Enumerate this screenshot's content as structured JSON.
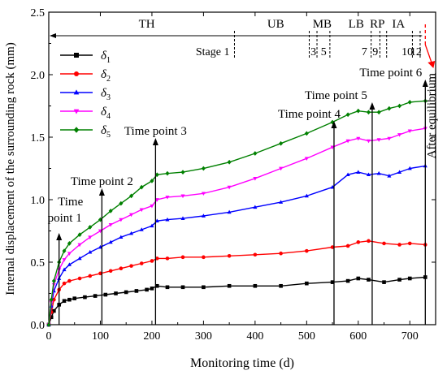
{
  "chart_data": {
    "type": "line",
    "title": "",
    "xlabel": "Monitoring time (d)",
    "ylabel": "Internal displacement of the surrounding rock (mm)",
    "xlim": [
      0,
      750
    ],
    "ylim": [
      0,
      2.5
    ],
    "x_ticks": [
      0,
      100,
      200,
      300,
      400,
      500,
      600,
      700
    ],
    "y_ticks": [
      0.0,
      0.5,
      1.0,
      1.5,
      2.0,
      2.5
    ],
    "x_tick_labels": [
      "0",
      "100",
      "200",
      "300",
      "400",
      "500",
      "600",
      "700"
    ],
    "y_tick_labels": [
      "0.0",
      "0.5",
      "1.0",
      "1.5",
      "2.0",
      "2.5"
    ],
    "grid": false,
    "legend_position": "top-left",
    "series": [
      {
        "name": "δ1",
        "color": "#000000",
        "marker": "square",
        "points": [
          [
            0,
            0
          ],
          [
            5,
            0.06
          ],
          [
            10,
            0.11
          ],
          [
            20,
            0.16
          ],
          [
            30,
            0.19
          ],
          [
            40,
            0.2
          ],
          [
            50,
            0.21
          ],
          [
            70,
            0.22
          ],
          [
            90,
            0.23
          ],
          [
            110,
            0.24
          ],
          [
            130,
            0.25
          ],
          [
            150,
            0.26
          ],
          [
            170,
            0.27
          ],
          [
            190,
            0.28
          ],
          [
            200,
            0.29
          ],
          [
            210,
            0.31
          ],
          [
            230,
            0.3
          ],
          [
            260,
            0.3
          ],
          [
            300,
            0.3
          ],
          [
            350,
            0.31
          ],
          [
            400,
            0.31
          ],
          [
            450,
            0.31
          ],
          [
            500,
            0.33
          ],
          [
            550,
            0.34
          ],
          [
            580,
            0.35
          ],
          [
            600,
            0.37
          ],
          [
            620,
            0.36
          ],
          [
            650,
            0.34
          ],
          [
            680,
            0.36
          ],
          [
            700,
            0.37
          ],
          [
            730,
            0.38
          ]
        ]
      },
      {
        "name": "δ2",
        "color": "#ff0000",
        "marker": "circle",
        "points": [
          [
            0,
            0
          ],
          [
            5,
            0.1
          ],
          [
            10,
            0.2
          ],
          [
            20,
            0.28
          ],
          [
            30,
            0.33
          ],
          [
            40,
            0.35
          ],
          [
            60,
            0.37
          ],
          [
            80,
            0.39
          ],
          [
            100,
            0.41
          ],
          [
            120,
            0.43
          ],
          [
            140,
            0.45
          ],
          [
            160,
            0.47
          ],
          [
            180,
            0.49
          ],
          [
            200,
            0.51
          ],
          [
            210,
            0.53
          ],
          [
            230,
            0.53
          ],
          [
            260,
            0.54
          ],
          [
            300,
            0.54
          ],
          [
            350,
            0.55
          ],
          [
            400,
            0.56
          ],
          [
            450,
            0.57
          ],
          [
            500,
            0.59
          ],
          [
            550,
            0.62
          ],
          [
            580,
            0.63
          ],
          [
            600,
            0.66
          ],
          [
            620,
            0.67
          ],
          [
            650,
            0.65
          ],
          [
            680,
            0.64
          ],
          [
            700,
            0.65
          ],
          [
            730,
            0.64
          ]
        ]
      },
      {
        "name": "δ3",
        "color": "#0000ff",
        "marker": "triangle-up",
        "points": [
          [
            0,
            0
          ],
          [
            5,
            0.15
          ],
          [
            10,
            0.27
          ],
          [
            20,
            0.37
          ],
          [
            30,
            0.44
          ],
          [
            40,
            0.48
          ],
          [
            60,
            0.53
          ],
          [
            80,
            0.58
          ],
          [
            100,
            0.62
          ],
          [
            120,
            0.66
          ],
          [
            140,
            0.7
          ],
          [
            160,
            0.73
          ],
          [
            180,
            0.76
          ],
          [
            200,
            0.79
          ],
          [
            210,
            0.83
          ],
          [
            230,
            0.84
          ],
          [
            260,
            0.85
          ],
          [
            300,
            0.87
          ],
          [
            350,
            0.9
          ],
          [
            400,
            0.94
          ],
          [
            450,
            0.98
          ],
          [
            500,
            1.03
          ],
          [
            550,
            1.1
          ],
          [
            580,
            1.2
          ],
          [
            600,
            1.22
          ],
          [
            620,
            1.2
          ],
          [
            640,
            1.21
          ],
          [
            660,
            1.19
          ],
          [
            680,
            1.22
          ],
          [
            700,
            1.25
          ],
          [
            730,
            1.27
          ]
        ]
      },
      {
        "name": "δ4",
        "color": "#ff00ff",
        "marker": "triangle-down",
        "points": [
          [
            0,
            0
          ],
          [
            5,
            0.18
          ],
          [
            10,
            0.32
          ],
          [
            20,
            0.44
          ],
          [
            30,
            0.52
          ],
          [
            40,
            0.57
          ],
          [
            60,
            0.64
          ],
          [
            80,
            0.7
          ],
          [
            100,
            0.75
          ],
          [
            120,
            0.8
          ],
          [
            140,
            0.84
          ],
          [
            160,
            0.88
          ],
          [
            180,
            0.92
          ],
          [
            200,
            0.95
          ],
          [
            210,
            1.0
          ],
          [
            230,
            1.02
          ],
          [
            260,
            1.03
          ],
          [
            300,
            1.05
          ],
          [
            350,
            1.1
          ],
          [
            400,
            1.17
          ],
          [
            450,
            1.25
          ],
          [
            500,
            1.33
          ],
          [
            550,
            1.42
          ],
          [
            580,
            1.47
          ],
          [
            600,
            1.49
          ],
          [
            620,
            1.47
          ],
          [
            640,
            1.48
          ],
          [
            660,
            1.49
          ],
          [
            680,
            1.52
          ],
          [
            700,
            1.55
          ],
          [
            730,
            1.57
          ]
        ]
      },
      {
        "name": "δ5",
        "color": "#008000",
        "marker": "diamond",
        "points": [
          [
            0,
            0
          ],
          [
            5,
            0.2
          ],
          [
            10,
            0.35
          ],
          [
            20,
            0.5
          ],
          [
            30,
            0.59
          ],
          [
            40,
            0.65
          ],
          [
            60,
            0.72
          ],
          [
            80,
            0.78
          ],
          [
            100,
            0.84
          ],
          [
            120,
            0.91
          ],
          [
            140,
            0.97
          ],
          [
            160,
            1.03
          ],
          [
            180,
            1.1
          ],
          [
            200,
            1.15
          ],
          [
            210,
            1.2
          ],
          [
            230,
            1.21
          ],
          [
            260,
            1.22
          ],
          [
            300,
            1.25
          ],
          [
            350,
            1.3
          ],
          [
            400,
            1.37
          ],
          [
            450,
            1.45
          ],
          [
            500,
            1.53
          ],
          [
            550,
            1.62
          ],
          [
            580,
            1.68
          ],
          [
            600,
            1.71
          ],
          [
            620,
            1.7
          ],
          [
            640,
            1.7
          ],
          [
            660,
            1.73
          ],
          [
            680,
            1.75
          ],
          [
            700,
            1.78
          ],
          [
            730,
            1.79
          ]
        ]
      }
    ],
    "time_points": [
      {
        "label_line1": "Time",
        "label_line2": "point 1",
        "x": 20
      },
      {
        "label": "Time point 2",
        "x": 103
      },
      {
        "label": "Time point 3",
        "x": 207
      },
      {
        "label": "Time point 4",
        "x": 553
      },
      {
        "label": "Time point 5",
        "x": 627
      },
      {
        "label": "Time point 6",
        "x": 730
      }
    ],
    "construction_stages": {
      "labels": [
        {
          "text": "TH",
          "x": 190
        },
        {
          "text": "UB",
          "x": 440
        },
        {
          "text": "MB",
          "x": 530
        },
        {
          "text": "LB",
          "x": 596
        },
        {
          "text": "RP",
          "x": 637
        },
        {
          "text": "IA",
          "x": 678
        }
      ],
      "stage_word": "Stage 1",
      "stage_numbers": [
        {
          "text": "3",
          "x": 513
        },
        {
          "text": "5",
          "x": 533
        },
        {
          "text": "7",
          "x": 612
        },
        {
          "text": "9",
          "x": 633
        },
        {
          "text": "10",
          "x": 695
        },
        {
          "text": "12",
          "x": 712
        }
      ],
      "dividers_x": [
        360,
        505,
        520,
        545,
        625,
        642,
        655,
        705,
        720
      ],
      "after_equilibrium_label": "After equilibrium",
      "after_equilibrium_x": 730
    }
  }
}
